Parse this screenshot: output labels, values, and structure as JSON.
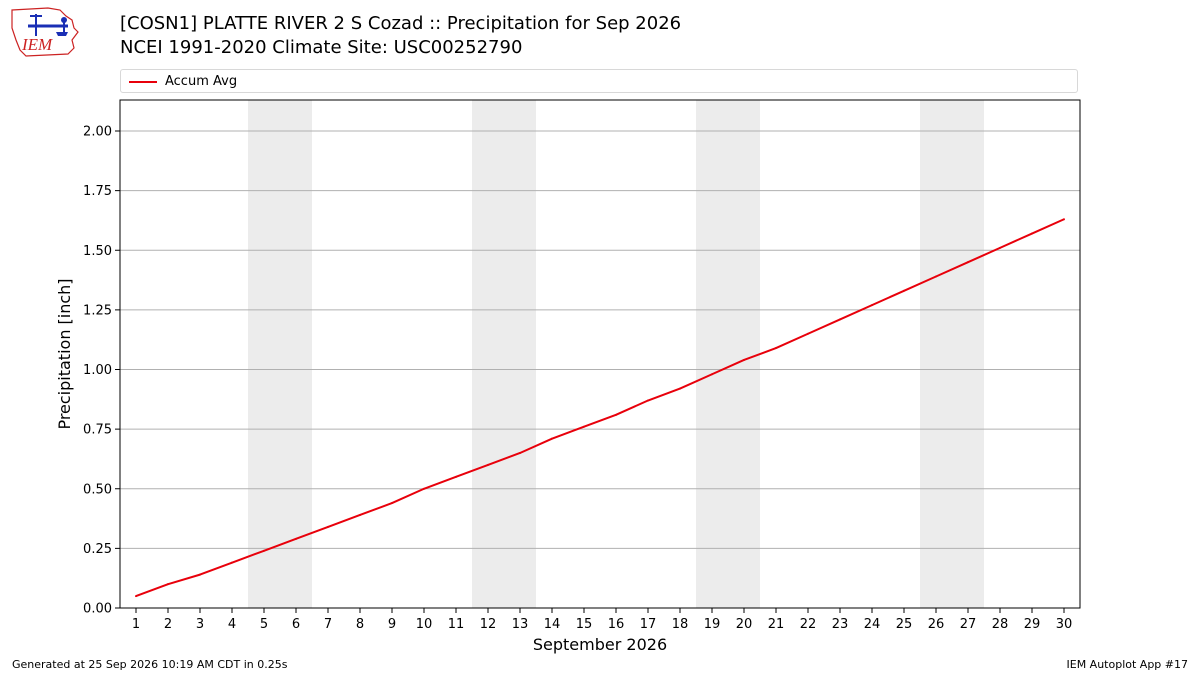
{
  "header": {
    "title_line1": "[COSN1] PLATTE RIVER 2 S Cozad :: Precipitation for Sep 2026",
    "title_line2": "NCEI 1991-2020 Climate Site: USC00252790",
    "logo_text": "IEM"
  },
  "footer": {
    "left": "Generated at 25 Sep 2026 10:19 AM CDT in 0.25s",
    "right": "IEM Autoplot App #17"
  },
  "colors": {
    "series": "#e8000b",
    "weekend_band": "#ececec",
    "grid": "#b0b0b0",
    "logo_red": "#cc2222",
    "logo_blue": "#1a2fb5"
  },
  "chart_data": {
    "type": "line",
    "xlabel": "September 2026",
    "ylabel": "Precipitation [inch]",
    "xlim": [
      0.5,
      30.5
    ],
    "ylim": [
      0,
      2.13
    ],
    "yticks": [
      0.0,
      0.25,
      0.5,
      0.75,
      1.0,
      1.25,
      1.5,
      1.75,
      2.0
    ],
    "ytick_labels": [
      "0.00",
      "0.25",
      "0.50",
      "0.75",
      "1.00",
      "1.25",
      "1.50",
      "1.75",
      "2.00"
    ],
    "x": [
      1,
      2,
      3,
      4,
      5,
      6,
      7,
      8,
      9,
      10,
      11,
      12,
      13,
      14,
      15,
      16,
      17,
      18,
      19,
      20,
      21,
      22,
      23,
      24,
      25,
      26,
      27,
      28,
      29,
      30
    ],
    "xtick_labels": [
      "1",
      "2",
      "3",
      "4",
      "5",
      "6",
      "7",
      "8",
      "9",
      "10",
      "11",
      "12",
      "13",
      "14",
      "15",
      "16",
      "17",
      "18",
      "19",
      "20",
      "21",
      "22",
      "23",
      "24",
      "25",
      "26",
      "27",
      "28",
      "29",
      "30"
    ],
    "grid": "horizontal",
    "legend_position": "top",
    "weekend_bands": [
      [
        4.5,
        6.5
      ],
      [
        11.5,
        13.5
      ],
      [
        18.5,
        20.5
      ],
      [
        25.5,
        27.5
      ]
    ],
    "series": [
      {
        "name": "Accum Avg",
        "values": [
          0.05,
          0.1,
          0.14,
          0.19,
          0.24,
          0.29,
          0.34,
          0.39,
          0.44,
          0.5,
          0.55,
          0.6,
          0.65,
          0.71,
          0.76,
          0.81,
          0.87,
          0.92,
          0.98,
          1.04,
          1.09,
          1.15,
          1.21,
          1.27,
          1.33,
          1.39,
          1.45,
          1.51,
          1.57,
          1.63
        ]
      }
    ]
  }
}
